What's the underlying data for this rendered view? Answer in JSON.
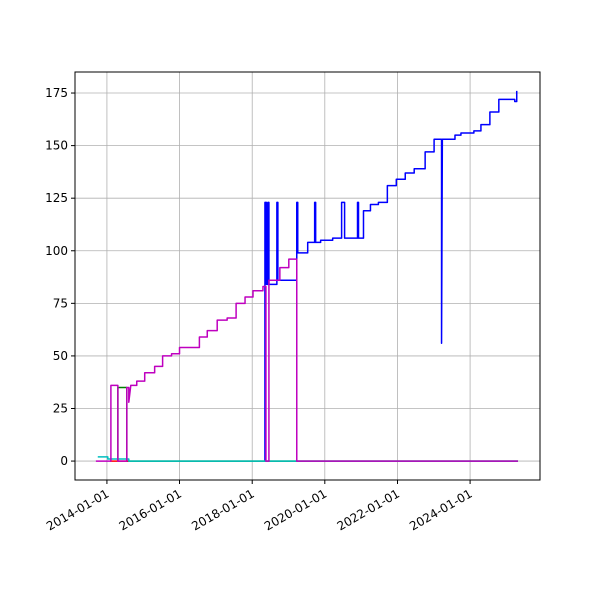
{
  "chart_data": {
    "type": "line",
    "xlim": [
      "2013-02-14",
      "2025-12-04"
    ],
    "xticks": [
      "2014-01-01",
      "2016-01-01",
      "2018-01-01",
      "2020-01-01",
      "2022-01-01",
      "2024-01-01"
    ],
    "ylim": [
      -9,
      185
    ],
    "yticks": [
      0,
      25,
      50,
      75,
      100,
      125,
      150,
      175
    ],
    "grid": true,
    "series": [
      {
        "color": "#0000ff",
        "x": [
          "2018-05-09",
          "2018-05-09",
          "2018-05-24",
          "2018-05-24",
          "2018-06-08",
          "2018-06-08",
          "2018-06-18",
          "2018-06-18",
          "2018-09-06",
          "2018-09-06",
          "2018-09-16",
          "2018-09-16",
          "2019-03-25",
          "2019-03-25",
          "2019-04-04",
          "2019-04-04",
          "2019-07-13",
          "2019-07-13",
          "2019-09-21",
          "2019-09-21",
          "2019-10-01",
          "2019-10-01",
          "2019-11-20",
          "2019-11-20",
          "2020-03-20",
          "2020-03-20",
          "2020-06-18",
          "2020-06-18",
          "2020-07-18",
          "2020-07-18",
          "2020-11-25",
          "2020-11-25",
          "2020-12-05",
          "2020-12-05",
          "2021-01-24",
          "2021-01-24",
          "2021-04-04",
          "2021-04-04",
          "2021-06-23",
          "2021-06-23",
          "2021-09-21",
          "2021-09-21",
          "2021-12-20",
          "2021-12-20",
          "2022-03-20",
          "2022-03-20",
          "2022-06-18",
          "2022-06-18",
          "2022-10-06",
          "2022-10-06",
          "2023-01-04",
          "2023-01-04",
          "2023-03-20",
          "2023-03-20",
          "2023-03-28",
          "2023-08-02",
          "2023-08-02",
          "2023-10-01",
          "2023-10-01",
          "2024-02-08",
          "2024-02-08",
          "2024-04-19",
          "2024-04-19",
          "2024-07-18",
          "2024-07-18",
          "2024-10-16",
          "2024-10-16",
          "2025-03-25",
          "2025-03-25",
          "2025-04-14",
          "2025-04-14"
        ],
        "values": [
          0,
          123,
          123,
          84,
          84,
          123,
          123,
          84,
          84,
          123,
          123,
          86,
          86,
          123,
          123,
          99,
          99,
          104,
          104,
          123,
          123,
          104,
          104,
          105,
          105,
          106,
          106,
          123,
          123,
          106,
          106,
          123,
          123,
          106,
          106,
          119,
          119,
          122,
          122,
          123,
          123,
          131,
          131,
          134,
          134,
          137,
          137,
          139,
          139,
          147,
          147,
          153,
          153,
          56,
          153,
          153,
          155,
          155,
          156,
          156,
          157,
          157,
          160,
          160,
          166,
          166,
          172,
          172,
          171,
          171,
          176
        ]
      },
      {
        "color": "#007f00",
        "x": [
          "2014-04-21",
          "2014-04-21",
          "2014-07-20",
          "2014-07-20",
          "2025-04-27"
        ],
        "values": [
          0,
          35,
          35,
          0,
          0
        ]
      },
      {
        "color": "#ff0000",
        "x": [
          "2014-02-01",
          "2014-08-09"
        ],
        "values": [
          0,
          0
        ]
      },
      {
        "color": "#00bfbf",
        "x": [
          "2013-10-01",
          "2014-01-10",
          "2014-01-10",
          "2014-08-09",
          "2014-08-09",
          "2025-04-27"
        ],
        "values": [
          2,
          2,
          1,
          1,
          0,
          0
        ]
      },
      {
        "color": "#bf00bf",
        "x": [
          "2013-09-12",
          "2014-02-10",
          "2014-02-10",
          "2014-04-21",
          "2014-04-21",
          "2014-07-20",
          "2014-07-20",
          "2014-08-09",
          "2014-08-09",
          "2014-08-29",
          "2014-10-28",
          "2014-10-28",
          "2015-01-16",
          "2015-01-16",
          "2015-04-26",
          "2015-04-26",
          "2015-07-15",
          "2015-07-15",
          "2015-10-13",
          "2015-10-13",
          "2016-01-01",
          "2016-01-01",
          "2016-07-19",
          "2016-07-19",
          "2016-10-06",
          "2016-10-06",
          "2017-01-14",
          "2017-01-14",
          "2017-04-24",
          "2017-04-24",
          "2017-07-23",
          "2017-07-23",
          "2017-10-21",
          "2017-10-21",
          "2018-01-09",
          "2018-01-09",
          "2018-04-19",
          "2018-04-19",
          "2018-05-19",
          "2018-05-19",
          "2018-06-18",
          "2018-06-18",
          "2018-10-06",
          "2018-10-06",
          "2019-01-04",
          "2019-01-04",
          "2019-03-25",
          "2019-03-25",
          "2025-04-27"
        ],
        "values": [
          0,
          0,
          36,
          36,
          0,
          0,
          35,
          35,
          28,
          36,
          36,
          38,
          38,
          42,
          42,
          45,
          45,
          50,
          50,
          51,
          51,
          54,
          54,
          59,
          59,
          62,
          62,
          67,
          67,
          68,
          68,
          75,
          75,
          78,
          78,
          81,
          81,
          83,
          83,
          0,
          0,
          86,
          86,
          92,
          92,
          96,
          96,
          0,
          0
        ]
      }
    ]
  }
}
